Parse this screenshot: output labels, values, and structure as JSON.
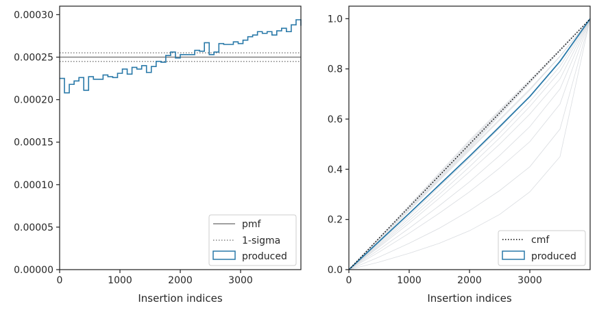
{
  "chart_data": [
    {
      "type": "line",
      "xlabel": "Insertion indices",
      "ylabel": "",
      "xlim": [
        0,
        4000
      ],
      "ylim": [
        0,
        0.00031
      ],
      "xticks": [
        0,
        1000,
        2000,
        3000
      ],
      "xtick_labels": [
        "0",
        "1000",
        "2000",
        "3000"
      ],
      "yticks": [
        0,
        5e-05,
        0.0001,
        0.00015,
        0.0002,
        0.00025,
        0.0003
      ],
      "ytick_labels": [
        "0.00000",
        "0.00005",
        "0.00010",
        "0.00015",
        "0.00020",
        "0.00025",
        "0.00030"
      ],
      "grid": false,
      "legend_position": "lower-right",
      "series": [
        {
          "name": "pmf",
          "kind": "hline",
          "y": 0.00025,
          "color": "#808080",
          "style": "solid"
        },
        {
          "name": "1-sigma",
          "kind": "hlines",
          "y": [
            0.000255,
            0.000245
          ],
          "color": "#808080",
          "style": "dotted"
        },
        {
          "name": "produced",
          "kind": "step-histogram",
          "color": "#2878a8",
          "bin_width": 80,
          "values": [
            0.000225,
            0.000208,
            0.000218,
            0.000222,
            0.000226,
            0.000211,
            0.000227,
            0.000224,
            0.000224,
            0.000229,
            0.000227,
            0.000226,
            0.000231,
            0.000236,
            0.00023,
            0.000238,
            0.000236,
            0.00024,
            0.000232,
            0.000239,
            0.000245,
            0.000244,
            0.000252,
            0.000256,
            0.000249,
            0.000253,
            0.000253,
            0.000253,
            0.000258,
            0.000257,
            0.000267,
            0.000253,
            0.000256,
            0.000266,
            0.000265,
            0.000265,
            0.000268,
            0.000266,
            0.00027,
            0.000274,
            0.000276,
            0.00028,
            0.000278,
            0.00028,
            0.000276,
            0.000281,
            0.000284,
            0.00028,
            0.000288,
            0.000294,
            0.000287
          ]
        }
      ]
    },
    {
      "type": "line",
      "xlabel": "Insertion indices",
      "ylabel": "",
      "xlim": [
        0,
        4000
      ],
      "ylim": [
        0,
        1.05
      ],
      "xticks": [
        0,
        1000,
        2000,
        3000
      ],
      "xtick_labels": [
        "0",
        "1000",
        "2000",
        "3000"
      ],
      "yticks": [
        0,
        0.2,
        0.4,
        0.6,
        0.8,
        1.0
      ],
      "ytick_labels": [
        "0.0",
        "0.2",
        "0.4",
        "0.6",
        "0.8",
        "1.0"
      ],
      "grid": false,
      "legend_position": "lower-right",
      "series": [
        {
          "name": "cmf",
          "kind": "line",
          "x": [
            0,
            4000
          ],
          "y": [
            0,
            1.0
          ],
          "color": "#000000",
          "style": "dotted"
        },
        {
          "name": "produced",
          "kind": "cdf",
          "x": [
            0,
            500,
            1000,
            1500,
            2000,
            2500,
            3000,
            3500,
            4000
          ],
          "y": [
            0,
            0.112,
            0.224,
            0.338,
            0.452,
            0.57,
            0.69,
            0.83,
            1.0
          ],
          "color": "#2878a8",
          "style": "solid"
        },
        {
          "name": "",
          "kind": "background-cdfs",
          "color": "#d0d3d8",
          "x": [
            0,
            500,
            1000,
            1500,
            2000,
            2500,
            3000,
            3500,
            4000
          ],
          "curves": [
            [
              0,
              0.12,
              0.24,
              0.36,
              0.48,
              0.6,
              0.72,
              0.85,
              1.0
            ],
            [
              0,
              0.125,
              0.25,
              0.375,
              0.5,
              0.625,
              0.75,
              0.87,
              1.0
            ],
            [
              0,
              0.115,
              0.235,
              0.355,
              0.475,
              0.595,
              0.715,
              0.85,
              1.0
            ],
            [
              0,
              0.105,
              0.215,
              0.33,
              0.445,
              0.565,
              0.69,
              0.83,
              1.0
            ],
            [
              0,
              0.1,
              0.205,
              0.315,
              0.43,
              0.545,
              0.67,
              0.81,
              1.0
            ],
            [
              0,
              0.095,
              0.195,
              0.3,
              0.41,
              0.525,
              0.65,
              0.79,
              1.0
            ],
            [
              0,
              0.09,
              0.185,
              0.285,
              0.39,
              0.5,
              0.62,
              0.76,
              1.0
            ],
            [
              0,
              0.08,
              0.165,
              0.255,
              0.35,
              0.455,
              0.57,
              0.72,
              1.0
            ],
            [
              0,
              0.07,
              0.145,
              0.225,
              0.31,
              0.405,
              0.51,
              0.66,
              1.0
            ],
            [
              0,
              0.05,
              0.105,
              0.165,
              0.235,
              0.315,
              0.41,
              0.56,
              1.0
            ],
            [
              0,
              0.03,
              0.065,
              0.105,
              0.155,
              0.22,
              0.31,
              0.45,
              1.0
            ]
          ]
        }
      ]
    }
  ]
}
